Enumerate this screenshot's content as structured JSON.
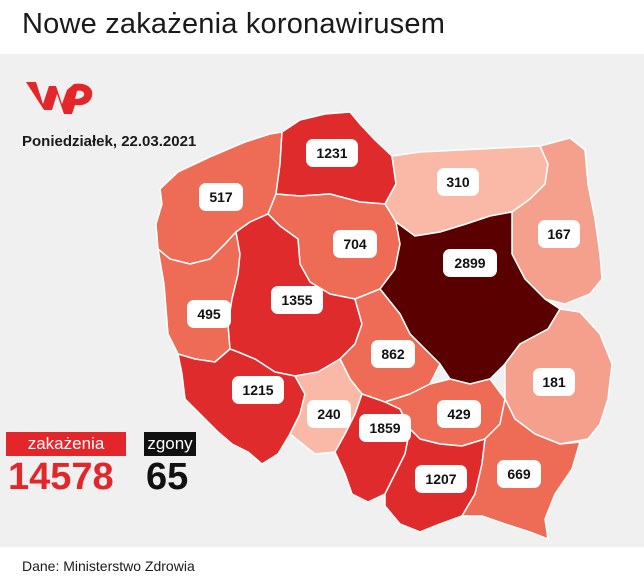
{
  "title": "Nowe zakażenia koronawirusem",
  "date": "Poniedziałek, 22.03.2021",
  "logo": {
    "name": "wp-logo",
    "color": "#e3262a"
  },
  "stats": {
    "infections_label": "zakażenia",
    "infections_value": "14578",
    "deaths_label": "zgony",
    "deaths_value": "65",
    "infections_color": "#e3262a",
    "deaths_color": "#111111"
  },
  "source": "Dane: Ministerstwo Zdrowia",
  "colors": {
    "darkest": "#5a0000",
    "dark_red": "#df2b2b",
    "medium": "#ee6b55",
    "light": "#f5a08c",
    "lightest": "#f9b9a6",
    "background": "#f0f0f0",
    "border": "#ffffff"
  },
  "regions": [
    {
      "id": "zachodniopomorskie",
      "value": "517"
    },
    {
      "id": "pomorskie",
      "value": "1231"
    },
    {
      "id": "warminsko-mazurskie",
      "value": "310"
    },
    {
      "id": "podlaskie",
      "value": "167"
    },
    {
      "id": "kujawsko-pomorskie",
      "value": "704"
    },
    {
      "id": "lubuskie",
      "value": "495"
    },
    {
      "id": "wielkopolskie",
      "value": "1355"
    },
    {
      "id": "mazowieckie",
      "value": "2899"
    },
    {
      "id": "lodzkie",
      "value": "862"
    },
    {
      "id": "lubelskie",
      "value": "181"
    },
    {
      "id": "dolnoslaskie",
      "value": "1215"
    },
    {
      "id": "opolskie",
      "value": "240"
    },
    {
      "id": "slaskie",
      "value": "1859"
    },
    {
      "id": "swietokrzyskie",
      "value": "429"
    },
    {
      "id": "malopolskie",
      "value": "1207"
    },
    {
      "id": "podkarpackie",
      "value": "669"
    }
  ]
}
